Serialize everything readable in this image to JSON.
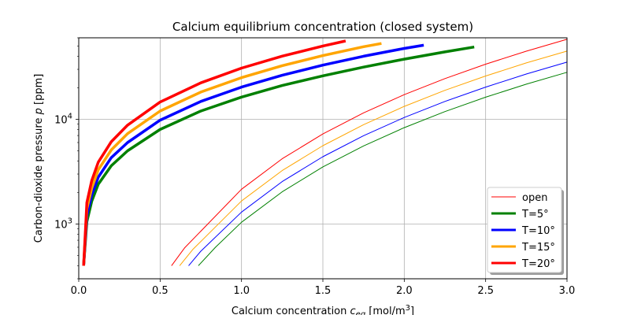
{
  "chart_data": {
    "type": "line",
    "title": "Calcium equilibrium concentration (closed system)",
    "xlabel": "Calcium concentration c_eq [mol/m³]",
    "xlabel_main": "Calcium concentration ",
    "xlabel_var": "c",
    "xlabel_sub": "eq",
    "xlabel_units": " [mol/m",
    "xlabel_sup": "3",
    "xlabel_close": "]",
    "ylabel": "Carbon-dioxide pressure p [ppm]",
    "ylabel_main": "Carbon-dioxide pressure ",
    "ylabel_var": "p",
    "ylabel_units": " [ppm]",
    "xlim": [
      0.0,
      3.0
    ],
    "ylim": [
      300,
      60000
    ],
    "yscale": "log",
    "grid": true,
    "legend_position": "bottom-right",
    "x_ticks": [
      {
        "value": 0.0,
        "label": "0.0"
      },
      {
        "value": 0.5,
        "label": "0.5"
      },
      {
        "value": 1.0,
        "label": "1.0"
      },
      {
        "value": 1.5,
        "label": "1.5"
      },
      {
        "value": 2.0,
        "label": "2.0"
      },
      {
        "value": 2.5,
        "label": "2.5"
      },
      {
        "value": 3.0,
        "label": "3.0"
      }
    ],
    "y_ticks": [
      {
        "value": 1000,
        "base": "10",
        "exp": "3"
      },
      {
        "value": 10000,
        "base": "10",
        "exp": "4"
      }
    ],
    "legend": [
      {
        "label": "open",
        "color": "#ff0000",
        "width": 1
      },
      {
        "label": "T=5°",
        "color": "#008000",
        "width": 3
      },
      {
        "label": "T=10°",
        "color": "#0000ff",
        "width": 3
      },
      {
        "label": "T=15°",
        "color": "#ffa500",
        "width": 3
      },
      {
        "label": "T=20°",
        "color": "#ff0000",
        "width": 3
      }
    ],
    "series": [
      {
        "name": "open",
        "group": "open",
        "color": "#008000",
        "width": 1,
        "x": [
          0.735,
          0.84,
          1.0,
          1.25,
          1.5,
          1.75,
          2.0,
          2.25,
          2.5,
          2.75,
          3.0
        ],
        "y": [
          400,
          600,
          1040,
          2030,
          3510,
          5570,
          8320,
          11850,
          16250,
          21630,
          28090
        ]
      },
      {
        "name": "open",
        "group": "open",
        "color": "#0000ff",
        "width": 1,
        "x": [
          0.675,
          0.75,
          1.0,
          1.25,
          1.5,
          1.75,
          2.0,
          2.25,
          2.5,
          2.75,
          3.0
        ],
        "y": [
          400,
          550,
          1300,
          2540,
          4390,
          6970,
          10400,
          14810,
          20310,
          27040,
          35110
        ]
      },
      {
        "name": "open",
        "group": "open",
        "color": "#ffa500",
        "width": 1,
        "x": [
          0.62,
          0.7,
          1.0,
          1.25,
          1.5,
          1.75,
          2.0,
          2.25,
          2.5,
          2.75,
          3.0
        ],
        "y": [
          400,
          570,
          1660,
          3240,
          5600,
          8890,
          13280,
          18900,
          25930,
          34510,
          44810
        ]
      },
      {
        "name": "open",
        "group": "open",
        "color": "#ff0000",
        "width": 1,
        "x": [
          0.57,
          0.65,
          1.0,
          1.25,
          1.5,
          1.75,
          2.0,
          2.25,
          2.5,
          2.75,
          3.0
        ],
        "y": [
          400,
          590,
          2150,
          4200,
          7250,
          11520,
          17200,
          24490,
          33590,
          44710,
          58050
        ]
      },
      {
        "name": "T=5°",
        "group": "closed",
        "color": "#008000",
        "width": 3.5,
        "x": [
          0.03,
          0.05,
          0.08,
          0.12,
          0.2,
          0.3,
          0.5,
          0.75,
          1.0,
          1.25,
          1.5,
          1.75,
          2.0,
          2.25,
          2.43
        ],
        "y": [
          400,
          1050,
          1650,
          2400,
          3600,
          5000,
          8000,
          12000,
          16300,
          21000,
          26000,
          31500,
          37500,
          44000,
          49000
        ]
      },
      {
        "name": "T=10°",
        "group": "closed",
        "color": "#0000ff",
        "width": 3.5,
        "x": [
          0.03,
          0.05,
          0.08,
          0.12,
          0.2,
          0.3,
          0.5,
          0.75,
          1.0,
          1.25,
          1.5,
          1.75,
          2.0,
          2.12
        ],
        "y": [
          400,
          1200,
          1900,
          2800,
          4300,
          6000,
          9800,
          14800,
          20300,
          26300,
          32900,
          40000,
          47500,
          51000
        ]
      },
      {
        "name": "T=15°",
        "group": "closed",
        "color": "#ffa500",
        "width": 3.5,
        "x": [
          0.03,
          0.05,
          0.08,
          0.12,
          0.2,
          0.3,
          0.5,
          0.75,
          1.0,
          1.25,
          1.5,
          1.75,
          1.86
        ],
        "y": [
          400,
          1400,
          2200,
          3300,
          5100,
          7300,
          12000,
          18200,
          25000,
          32500,
          40600,
          49300,
          53000
        ]
      },
      {
        "name": "T=20°",
        "group": "closed",
        "color": "#ff0000",
        "width": 3.5,
        "x": [
          0.03,
          0.05,
          0.08,
          0.12,
          0.2,
          0.3,
          0.5,
          0.75,
          1.0,
          1.25,
          1.5,
          1.64
        ],
        "y": [
          400,
          1600,
          2600,
          3900,
          6100,
          8800,
          14600,
          22300,
          30800,
          40100,
          50100,
          56000
        ]
      }
    ]
  }
}
